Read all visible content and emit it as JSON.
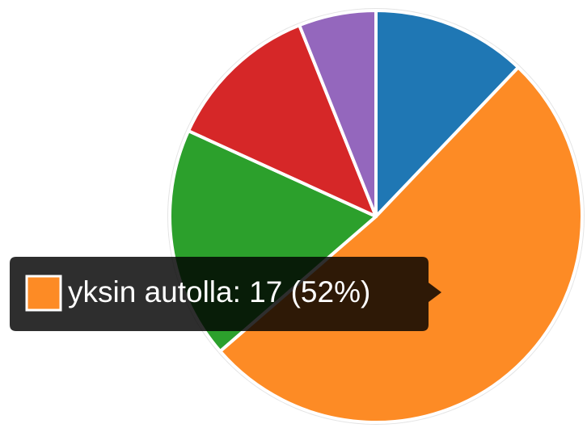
{
  "chart_data": {
    "type": "pie",
    "values": [
      4,
      17,
      6,
      4,
      2
    ],
    "colors": [
      "#1f77b4",
      "#fd8b25",
      "#2ca02c",
      "#d62728",
      "#9467bd"
    ],
    "tooltip": "yksin autolla: 17 (52%)",
    "tooltip_index": 1
  }
}
